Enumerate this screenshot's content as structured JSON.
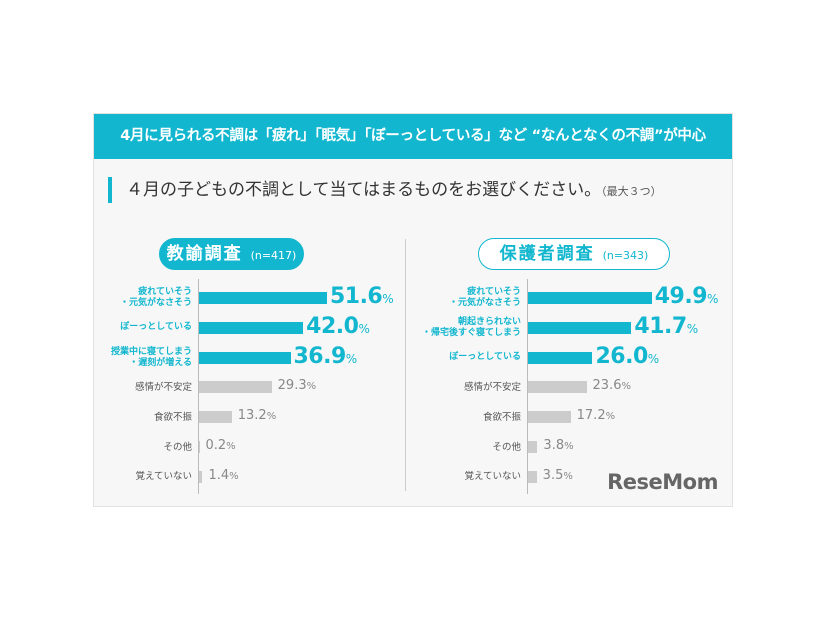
{
  "header": "4月に見られる不調は「疲れ」「眠気」「ぼーっとしている」など “なんとなくの不調”が中心",
  "question": "４月の子どもの不調として当てはまるものをお選びください。",
  "question_note": "（最大３つ）",
  "logo": "ReseMom",
  "colors": {
    "highlight": "#12b7cf",
    "other": "#cccccc"
  },
  "chart_data": [
    {
      "type": "bar",
      "orientation": "horizontal",
      "title": "教諭調査",
      "n": "(n=417)",
      "unit": "%",
      "categories": [
        "疲れていそう\n・元気がなさそう",
        "ぼーっとしている",
        "授業中に寝てしまう\n・遅刻が増える",
        "感情が不安定",
        "食欲不振",
        "その他",
        "覚えていない"
      ],
      "values": [
        51.6,
        42.0,
        36.9,
        29.3,
        13.2,
        0.2,
        1.4
      ],
      "highlighted": [
        true,
        true,
        true,
        false,
        false,
        false,
        false
      ]
    },
    {
      "type": "bar",
      "orientation": "horizontal",
      "title": "保護者調査",
      "n": "(n=343)",
      "unit": "%",
      "categories": [
        "疲れていそう\n・元気がなさそう",
        "朝起きられない\n・帰宅後すぐ寝てしまう",
        "ぼーっとしている",
        "感情が不安定",
        "食欲不振",
        "その他",
        "覚えていない"
      ],
      "values": [
        49.9,
        41.7,
        26.0,
        23.6,
        17.2,
        3.8,
        3.5
      ],
      "highlighted": [
        true,
        true,
        true,
        false,
        false,
        false,
        false
      ]
    }
  ]
}
